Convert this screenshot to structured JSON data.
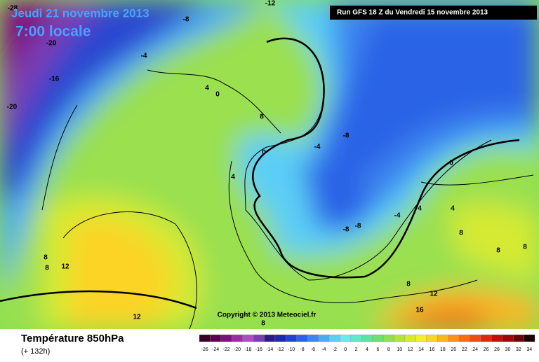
{
  "header": {
    "date": "Jeudi 21 novembre 2013",
    "time": "7:00 locale",
    "run": "Run GFS 18 Z du Vendredi 15 novembre 2013"
  },
  "copyright": "Copyright © 2013 Meteociel.fr",
  "footer": {
    "title": "Température 850hPa",
    "subtitle": "(+ 132h)"
  },
  "colorbar": {
    "values": [
      -26,
      -24,
      -22,
      -20,
      -18,
      -16,
      -14,
      -12,
      -10,
      -8,
      -6,
      -4,
      -2,
      0,
      2,
      4,
      6,
      8,
      10,
      12,
      14,
      16,
      18,
      20,
      22,
      24,
      26,
      28,
      30,
      32,
      34
    ],
    "colors": [
      "#3a0028",
      "#5c0050",
      "#7e1080",
      "#a02aa6",
      "#b04cc4",
      "#7a3cb4",
      "#2a1a8a",
      "#1a2aa8",
      "#1a46d0",
      "#2a64e6",
      "#3c86f0",
      "#4eaaf4",
      "#5ccef6",
      "#6ee8f0",
      "#62e8c8",
      "#5ae4a0",
      "#6ae070",
      "#8ee050",
      "#b4e43c",
      "#d6ea30",
      "#f4ee2c",
      "#fcd428",
      "#fcb422",
      "#fc921c",
      "#f46e14",
      "#ec4c10",
      "#dc2a0c",
      "#c01008",
      "#9a0808",
      "#6a0404",
      "#1a0000"
    ]
  },
  "contour_labels": [
    -28,
    -8,
    -12,
    -20,
    -4,
    -16,
    -20,
    4,
    0,
    8,
    0,
    -4,
    -8,
    4,
    0,
    4,
    4,
    -4,
    -8,
    -8,
    8,
    8,
    8,
    8,
    12,
    8,
    12,
    16,
    12,
    8,
    8
  ]
}
